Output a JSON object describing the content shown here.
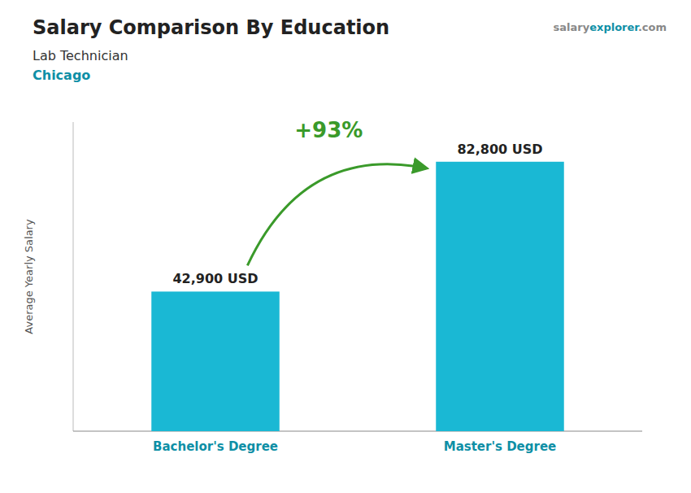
{
  "chart_data": {
    "type": "bar",
    "title": "Salary Comparison By Education",
    "subtitle": [
      "Lab Technician",
      "Chicago"
    ],
    "source": [
      "salary",
      "explorer",
      ".com"
    ],
    "ylabel": "Average Yearly Salary",
    "categories": [
      "Bachelor's Degree",
      "Master's Degree"
    ],
    "values": [
      42900,
      82800
    ],
    "value_labels": [
      "42,900 USD",
      "82,800 USD"
    ],
    "annotation": "+93%",
    "color": "#1ab8d4",
    "ylim": [
      0,
      95000
    ],
    "grid": false,
    "tick_labels": false,
    "data_labels": true
  }
}
